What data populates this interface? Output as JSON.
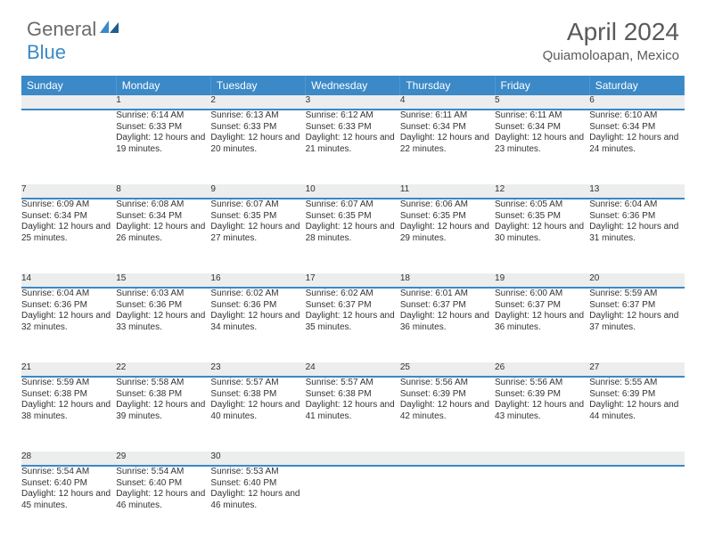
{
  "logo": {
    "part1": "General",
    "part2": "Blue"
  },
  "title": "April 2024",
  "location": "Quiamoloapan, Mexico",
  "weekdays": [
    "Sunday",
    "Monday",
    "Tuesday",
    "Wednesday",
    "Thursday",
    "Friday",
    "Saturday"
  ],
  "colors": {
    "header_bg": "#3b89c7",
    "header_fg": "#ffffff",
    "daynum_bg": "#eceded",
    "text": "#333333",
    "title": "#5a5a5a"
  },
  "weeks": [
    [
      null,
      {
        "n": "1",
        "sunrise": "6:14 AM",
        "sunset": "6:33 PM",
        "daylight": "12 hours and 19 minutes."
      },
      {
        "n": "2",
        "sunrise": "6:13 AM",
        "sunset": "6:33 PM",
        "daylight": "12 hours and 20 minutes."
      },
      {
        "n": "3",
        "sunrise": "6:12 AM",
        "sunset": "6:33 PM",
        "daylight": "12 hours and 21 minutes."
      },
      {
        "n": "4",
        "sunrise": "6:11 AM",
        "sunset": "6:34 PM",
        "daylight": "12 hours and 22 minutes."
      },
      {
        "n": "5",
        "sunrise": "6:11 AM",
        "sunset": "6:34 PM",
        "daylight": "12 hours and 23 minutes."
      },
      {
        "n": "6",
        "sunrise": "6:10 AM",
        "sunset": "6:34 PM",
        "daylight": "12 hours and 24 minutes."
      }
    ],
    [
      {
        "n": "7",
        "sunrise": "6:09 AM",
        "sunset": "6:34 PM",
        "daylight": "12 hours and 25 minutes."
      },
      {
        "n": "8",
        "sunrise": "6:08 AM",
        "sunset": "6:34 PM",
        "daylight": "12 hours and 26 minutes."
      },
      {
        "n": "9",
        "sunrise": "6:07 AM",
        "sunset": "6:35 PM",
        "daylight": "12 hours and 27 minutes."
      },
      {
        "n": "10",
        "sunrise": "6:07 AM",
        "sunset": "6:35 PM",
        "daylight": "12 hours and 28 minutes."
      },
      {
        "n": "11",
        "sunrise": "6:06 AM",
        "sunset": "6:35 PM",
        "daylight": "12 hours and 29 minutes."
      },
      {
        "n": "12",
        "sunrise": "6:05 AM",
        "sunset": "6:35 PM",
        "daylight": "12 hours and 30 minutes."
      },
      {
        "n": "13",
        "sunrise": "6:04 AM",
        "sunset": "6:36 PM",
        "daylight": "12 hours and 31 minutes."
      }
    ],
    [
      {
        "n": "14",
        "sunrise": "6:04 AM",
        "sunset": "6:36 PM",
        "daylight": "12 hours and 32 minutes."
      },
      {
        "n": "15",
        "sunrise": "6:03 AM",
        "sunset": "6:36 PM",
        "daylight": "12 hours and 33 minutes."
      },
      {
        "n": "16",
        "sunrise": "6:02 AM",
        "sunset": "6:36 PM",
        "daylight": "12 hours and 34 minutes."
      },
      {
        "n": "17",
        "sunrise": "6:02 AM",
        "sunset": "6:37 PM",
        "daylight": "12 hours and 35 minutes."
      },
      {
        "n": "18",
        "sunrise": "6:01 AM",
        "sunset": "6:37 PM",
        "daylight": "12 hours and 36 minutes."
      },
      {
        "n": "19",
        "sunrise": "6:00 AM",
        "sunset": "6:37 PM",
        "daylight": "12 hours and 36 minutes."
      },
      {
        "n": "20",
        "sunrise": "5:59 AM",
        "sunset": "6:37 PM",
        "daylight": "12 hours and 37 minutes."
      }
    ],
    [
      {
        "n": "21",
        "sunrise": "5:59 AM",
        "sunset": "6:38 PM",
        "daylight": "12 hours and 38 minutes."
      },
      {
        "n": "22",
        "sunrise": "5:58 AM",
        "sunset": "6:38 PM",
        "daylight": "12 hours and 39 minutes."
      },
      {
        "n": "23",
        "sunrise": "5:57 AM",
        "sunset": "6:38 PM",
        "daylight": "12 hours and 40 minutes."
      },
      {
        "n": "24",
        "sunrise": "5:57 AM",
        "sunset": "6:38 PM",
        "daylight": "12 hours and 41 minutes."
      },
      {
        "n": "25",
        "sunrise": "5:56 AM",
        "sunset": "6:39 PM",
        "daylight": "12 hours and 42 minutes."
      },
      {
        "n": "26",
        "sunrise": "5:56 AM",
        "sunset": "6:39 PM",
        "daylight": "12 hours and 43 minutes."
      },
      {
        "n": "27",
        "sunrise": "5:55 AM",
        "sunset": "6:39 PM",
        "daylight": "12 hours and 44 minutes."
      }
    ],
    [
      {
        "n": "28",
        "sunrise": "5:54 AM",
        "sunset": "6:40 PM",
        "daylight": "12 hours and 45 minutes."
      },
      {
        "n": "29",
        "sunrise": "5:54 AM",
        "sunset": "6:40 PM",
        "daylight": "12 hours and 46 minutes."
      },
      {
        "n": "30",
        "sunrise": "5:53 AM",
        "sunset": "6:40 PM",
        "daylight": "12 hours and 46 minutes."
      },
      null,
      null,
      null,
      null
    ]
  ],
  "labels": {
    "sunrise": "Sunrise: ",
    "sunset": "Sunset: ",
    "daylight": "Daylight: "
  }
}
